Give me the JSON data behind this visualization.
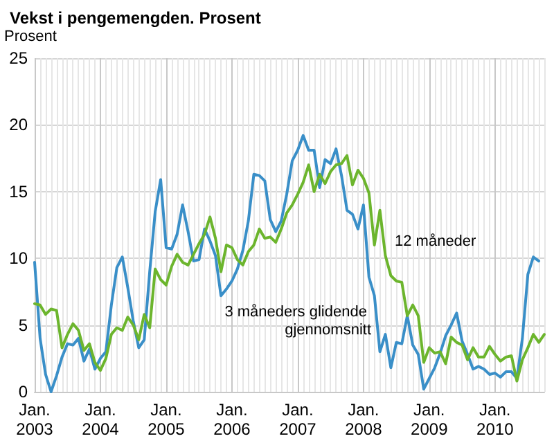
{
  "chart_data": {
    "type": "line",
    "title": "Vekst i pengemengden. Prosent",
    "ylabel": "Prosent",
    "x": [
      "2003-01",
      "2003-02",
      "2003-03",
      "2003-04",
      "2003-05",
      "2003-06",
      "2003-07",
      "2003-08",
      "2003-09",
      "2003-10",
      "2003-11",
      "2003-12",
      "2004-01",
      "2004-02",
      "2004-03",
      "2004-04",
      "2004-05",
      "2004-06",
      "2004-07",
      "2004-08",
      "2004-09",
      "2004-10",
      "2004-11",
      "2004-12",
      "2005-01",
      "2005-02",
      "2005-03",
      "2005-04",
      "2005-05",
      "2005-06",
      "2005-07",
      "2005-08",
      "2005-09",
      "2005-10",
      "2005-11",
      "2005-12",
      "2006-01",
      "2006-02",
      "2006-03",
      "2006-04",
      "2006-05",
      "2006-06",
      "2006-07",
      "2006-08",
      "2006-09",
      "2006-10",
      "2006-11",
      "2006-12",
      "2007-01",
      "2007-02",
      "2007-03",
      "2007-04",
      "2007-05",
      "2007-06",
      "2007-07",
      "2007-08",
      "2007-09",
      "2007-10",
      "2007-11",
      "2007-12",
      "2008-01",
      "2008-02",
      "2008-03",
      "2008-04",
      "2008-05",
      "2008-06",
      "2008-07",
      "2008-08",
      "2008-09",
      "2008-10",
      "2008-11",
      "2008-12",
      "2009-01",
      "2009-02",
      "2009-03",
      "2009-04",
      "2009-05",
      "2009-06",
      "2009-07",
      "2009-08",
      "2009-09",
      "2009-10",
      "2009-11",
      "2009-12",
      "2010-01",
      "2010-02",
      "2010-03",
      "2010-04",
      "2010-05",
      "2010-06",
      "2010-07",
      "2010-08",
      "2010-09",
      "2010-10"
    ],
    "xticks": [
      {
        "value": "2003-01",
        "label": "Jan.\n2003"
      },
      {
        "value": "2004-01",
        "label": "Jan.\n2004"
      },
      {
        "value": "2005-01",
        "label": "Jan.\n2005"
      },
      {
        "value": "2006-01",
        "label": "Jan.\n2006"
      },
      {
        "value": "2007-01",
        "label": "Jan.\n2007"
      },
      {
        "value": "2008-01",
        "label": "Jan.\n2008"
      },
      {
        "value": "2009-01",
        "label": "Jan.\n2009"
      },
      {
        "value": "2010-01",
        "label": "Jan.\n2010"
      }
    ],
    "xlim": [
      "2003-01",
      "2010-10"
    ],
    "ylim": [
      0,
      25
    ],
    "yticks": [
      0,
      5,
      10,
      15,
      20,
      25
    ],
    "grid": true,
    "legend": false,
    "marker": "none",
    "line_style": "solid",
    "series": [
      {
        "name": "3 måneders glidende gjennomsnitt",
        "color": "#3a8fc8",
        "values": [
          9.7,
          4,
          1.3,
          0,
          1.2,
          2.6,
          3.6,
          3.5,
          4,
          2.3,
          3.2,
          1.7,
          2.5,
          3,
          6.5,
          9.3,
          10.1,
          7.8,
          5.3,
          3.3,
          3.9,
          9,
          13.5,
          15.9,
          10.8,
          10.7,
          11.8,
          14,
          12,
          9.8,
          9.9,
          12.2,
          11.3,
          10.2,
          7.2,
          7.7,
          8.3,
          9.2,
          10.6,
          12.8,
          16.3,
          16.2,
          15.8,
          12.9,
          12,
          12.8,
          14.8,
          17.3,
          18.1,
          19.2,
          18.1,
          18.1,
          15.3,
          17.4,
          17.1,
          18.2,
          16.2,
          13.6,
          13.3,
          12.2,
          14,
          8.6,
          7.2,
          3,
          4.3,
          1.8,
          3.7,
          3.6,
          5.7,
          3.5,
          2.8,
          0.2,
          1,
          1.8,
          2.9,
          4.2,
          5,
          5.9,
          3.8,
          2.8,
          1.7,
          1.9,
          1.7,
          1.3,
          1.4,
          1.1,
          1.5,
          1.5,
          1,
          4,
          8.8,
          10.1,
          9.8,
          null
        ]
      },
      {
        "name": "12 måneder",
        "color": "#6cb52d",
        "values": [
          6.6,
          6.5,
          5.8,
          6.2,
          6.1,
          3.3,
          4.3,
          5.1,
          4.6,
          3.1,
          3.6,
          2.2,
          1.6,
          2.5,
          4.3,
          4.8,
          4.6,
          5.6,
          5,
          3.9,
          5.8,
          4.8,
          9.2,
          8.4,
          8,
          9.4,
          10.3,
          9.7,
          9.5,
          10.3,
          11.1,
          11.8,
          13.1,
          11.5,
          9,
          11,
          10.8,
          9.9,
          9.5,
          10.5,
          11,
          12.2,
          11.5,
          11.6,
          11.2,
          12.2,
          13.4,
          14,
          14.8,
          15.7,
          17,
          15,
          16.3,
          15.6,
          16.5,
          17,
          17.1,
          17.7,
          15.5,
          16.6,
          16,
          14.9,
          11,
          13.6,
          10.2,
          8.7,
          8.3,
          8.2,
          5.7,
          6.5,
          5.7,
          2.2,
          3.3,
          2.9,
          3,
          2.1,
          4.1,
          3.7,
          3.5,
          2.4,
          3.3,
          2.6,
          2.6,
          3.4,
          2.8,
          2.3,
          2.6,
          2.7,
          0.8,
          2.4,
          3.3,
          4.3,
          3.7,
          4.3
        ]
      }
    ]
  }
}
